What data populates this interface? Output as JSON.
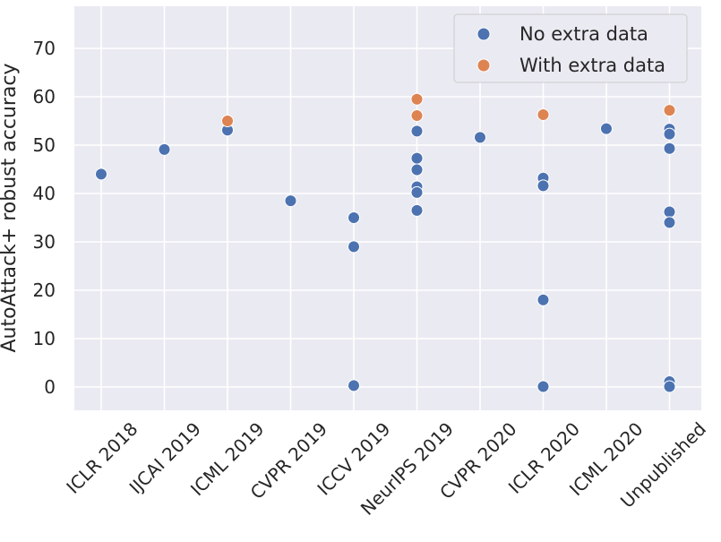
{
  "chart_data": {
    "type": "scatter",
    "title": "",
    "xlabel": "",
    "ylabel": "AutoAttack+ robust accuracy",
    "categories": [
      "ICLR 2018",
      "IJCAI 2019",
      "ICML 2019",
      "CVPR 2019",
      "ICCV 2019",
      "NeurIPS 2019",
      "CVPR 2020",
      "ICLR 2020",
      "ICML 2020",
      "Unpublished"
    ],
    "ylim": [
      -5,
      78
    ],
    "yticks": [
      0,
      10,
      20,
      30,
      40,
      50,
      60,
      70
    ],
    "grid": true,
    "legend_position": "top-right",
    "series": [
      {
        "name": "No extra data",
        "color": "#4c72b0",
        "points": [
          {
            "x": "ICLR 2018",
            "y": 44.0
          },
          {
            "x": "IJCAI 2019",
            "y": 49.1
          },
          {
            "x": "ICML 2019",
            "y": 53.1
          },
          {
            "x": "CVPR 2019",
            "y": 38.5
          },
          {
            "x": "ICCV 2019",
            "y": 35.0
          },
          {
            "x": "ICCV 2019",
            "y": 29.0
          },
          {
            "x": "ICCV 2019",
            "y": 0.3
          },
          {
            "x": "NeurIPS 2019",
            "y": 52.9
          },
          {
            "x": "NeurIPS 2019",
            "y": 47.3
          },
          {
            "x": "NeurIPS 2019",
            "y": 44.9
          },
          {
            "x": "NeurIPS 2019",
            "y": 41.4
          },
          {
            "x": "NeurIPS 2019",
            "y": 40.2
          },
          {
            "x": "NeurIPS 2019",
            "y": 36.5
          },
          {
            "x": "CVPR 2020",
            "y": 51.6
          },
          {
            "x": "ICLR 2020",
            "y": 43.2
          },
          {
            "x": "ICLR 2020",
            "y": 41.6
          },
          {
            "x": "ICLR 2020",
            "y": 18.0
          },
          {
            "x": "ICLR 2020",
            "y": 0.1
          },
          {
            "x": "ICML 2020",
            "y": 53.4
          },
          {
            "x": "Unpublished",
            "y": 53.3
          },
          {
            "x": "Unpublished",
            "y": 52.3
          },
          {
            "x": "Unpublished",
            "y": 49.3
          },
          {
            "x": "Unpublished",
            "y": 36.2
          },
          {
            "x": "Unpublished",
            "y": 34.0
          },
          {
            "x": "Unpublished",
            "y": 1.1
          },
          {
            "x": "Unpublished",
            "y": 0.1
          }
        ]
      },
      {
        "name": "With extra data",
        "color": "#dd8452",
        "points": [
          {
            "x": "ICML 2019",
            "y": 55.0
          },
          {
            "x": "NeurIPS 2019",
            "y": 59.5
          },
          {
            "x": "NeurIPS 2019",
            "y": 56.1
          },
          {
            "x": "ICLR 2020",
            "y": 56.3
          },
          {
            "x": "Unpublished",
            "y": 57.2
          }
        ]
      }
    ]
  }
}
